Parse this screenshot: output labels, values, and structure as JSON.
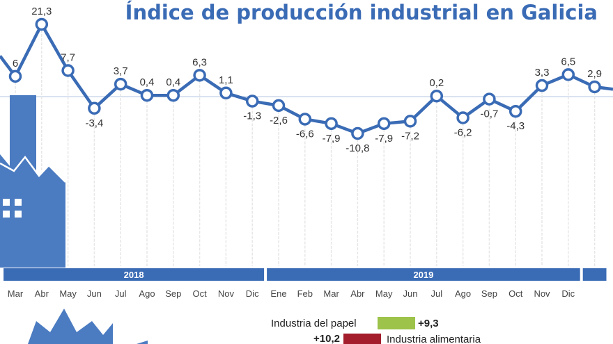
{
  "chart_data": {
    "type": "line",
    "title": "Índice de producción industrial en Galicia",
    "x": [
      "Mar",
      "Abr",
      "May",
      "Jun",
      "Jul",
      "Ago",
      "Sep",
      "Oct",
      "Nov",
      "Dic",
      "Ene",
      "Feb",
      "Mar",
      "Abr",
      "May",
      "Jun",
      "Jul",
      "Ago",
      "Sep",
      "Oct",
      "Nov",
      "Dic",
      ""
    ],
    "series": [
      {
        "values": [
          6,
          21.3,
          7.7,
          -3.4,
          3.7,
          0.4,
          0.4,
          6.3,
          1.1,
          -1.3,
          -2.6,
          -6.6,
          -7.9,
          -10.8,
          -7.9,
          -7.2,
          0.2,
          -6.2,
          -0.7,
          -4.3,
          3.3,
          6.5,
          2.9
        ],
        "labels": [
          "6",
          "21,3",
          "7,7",
          "-3,4",
          "3,7",
          "0,4",
          "0,4",
          "6,3",
          "1,1",
          "-1,3",
          "-2,6",
          "-6,6",
          "-7,9",
          "-10,8",
          "-7,9",
          "-7,2",
          "0,2",
          "-6,2",
          "-0,7",
          "-4,3",
          "3,3",
          "6,5",
          "2,9"
        ]
      }
    ],
    "years": [
      {
        "label": "2018",
        "from": 0,
        "to": 9
      },
      {
        "label": "2019",
        "from": 10,
        "to": 21
      },
      {
        "label": "",
        "from": 22,
        "to": 22
      }
    ],
    "ylim": [
      -13,
      25
    ],
    "grid": "vertical",
    "colors": {
      "line": "#3a6bb5",
      "marker_fill": "#ffffff",
      "zero_line": "#c9d6ea",
      "year_bar": "#3a6bb5",
      "factory": "#4b7bc1"
    }
  },
  "legend": {
    "items": [
      {
        "label": "Industria del papel",
        "value": "+9,3",
        "color": "#9dc34a"
      },
      {
        "label": "Industria alimentaria",
        "value": "+10,2",
        "color": "#a31d2d"
      }
    ]
  }
}
